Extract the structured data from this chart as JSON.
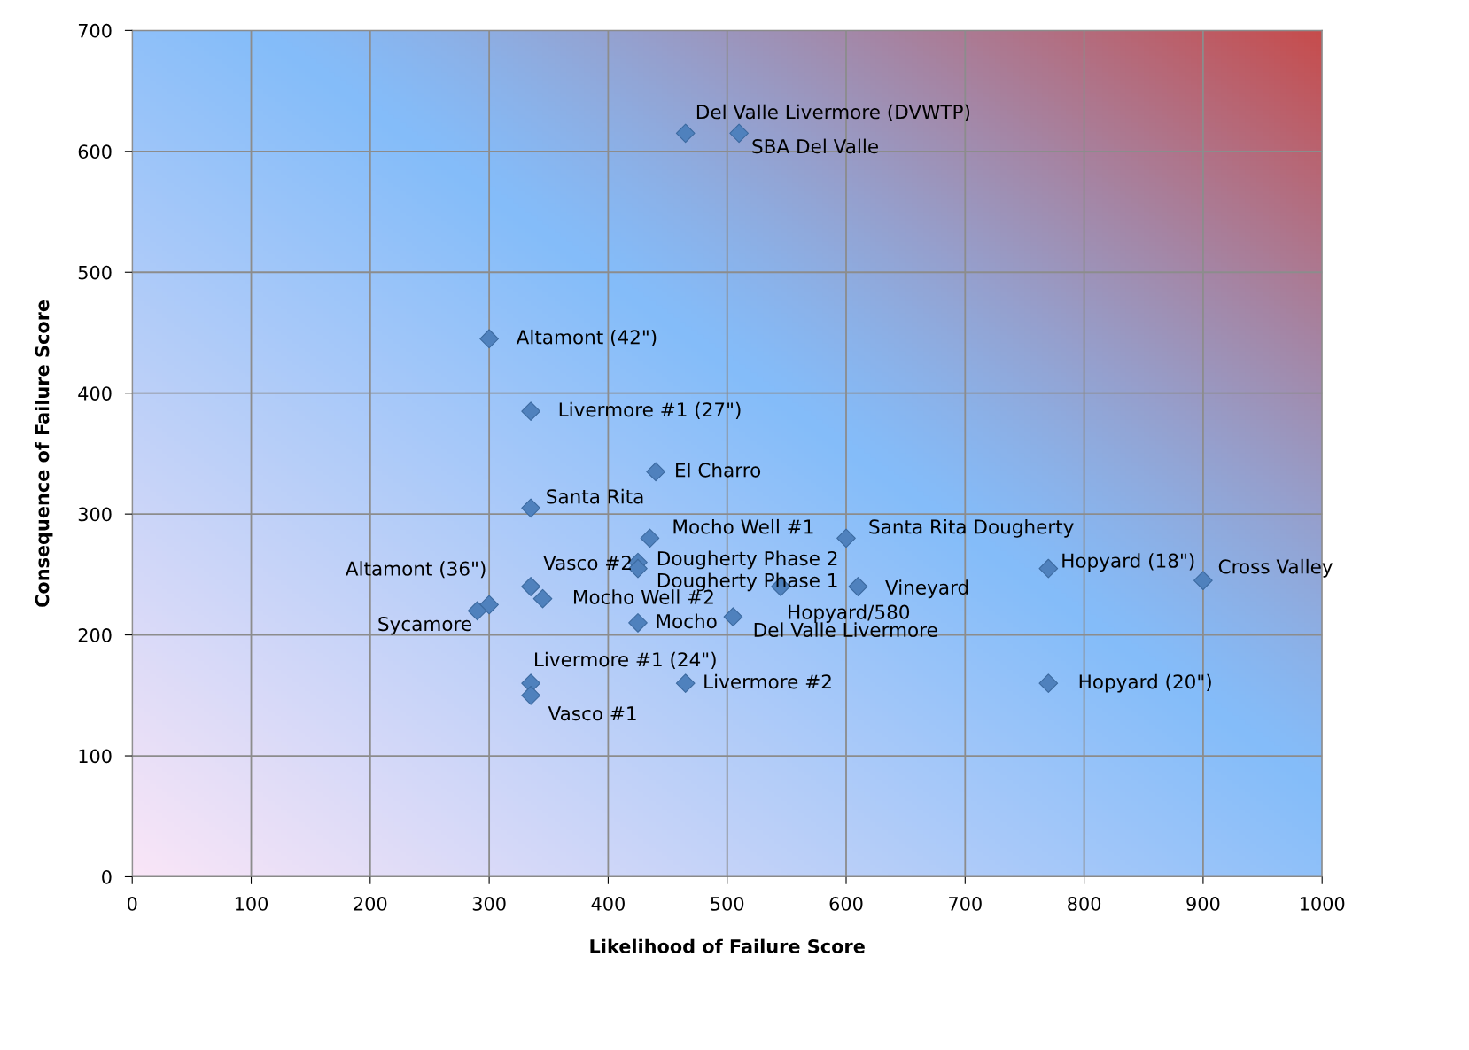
{
  "chart_data": {
    "type": "scatter",
    "xlabel": "Likelihood of Failure Score",
    "ylabel": "Consequence of Failure Score",
    "xlim": [
      0,
      1000
    ],
    "xticks": [
      0,
      100,
      200,
      300,
      400,
      500,
      600,
      700,
      800,
      900,
      1000
    ],
    "ylim": [
      0,
      700
    ],
    "yticks": [
      0,
      100,
      200,
      300,
      400,
      500,
      600,
      700
    ],
    "grid": true,
    "marker": "diamond",
    "series": [
      {
        "color": "#4f81bd",
        "x": [
          465,
          510,
          300,
          335,
          440,
          335,
          435,
          600,
          425,
          425,
          770,
          900,
          335,
          545,
          610,
          345,
          300,
          290,
          505,
          425,
          335,
          465,
          770,
          335
        ],
        "values": [
          615,
          615,
          445,
          385,
          335,
          305,
          280,
          280,
          260,
          255,
          255,
          245,
          240,
          240,
          240,
          230,
          225,
          220,
          215,
          210,
          160,
          160,
          160,
          150
        ]
      }
    ],
    "annotations": [
      {
        "text": "Del Valle Livermore (DVWTP)",
        "x": 465,
        "y": 615
      },
      {
        "text": "SBA Del Valle",
        "x": 510,
        "y": 615
      },
      {
        "text": "Altamont (42\")",
        "x": 300,
        "y": 445
      },
      {
        "text": "Livermore #1 (27\")",
        "x": 335,
        "y": 385
      },
      {
        "text": "El Charro",
        "x": 440,
        "y": 335
      },
      {
        "text": "Santa Rita",
        "x": 335,
        "y": 305
      },
      {
        "text": "Mocho Well #1",
        "x": 435,
        "y": 280
      },
      {
        "text": "Santa Rita Dougherty",
        "x": 600,
        "y": 280
      },
      {
        "text": "Dougherty Phase 2",
        "x": 425,
        "y": 260
      },
      {
        "text": "Dougherty Phase 1",
        "x": 425,
        "y": 255
      },
      {
        "text": "Hopyard (18\")",
        "x": 770,
        "y": 255
      },
      {
        "text": "Cross Valley",
        "x": 900,
        "y": 245
      },
      {
        "text": "Vasco #2",
        "x": 335,
        "y": 240
      },
      {
        "text": "Hopyard/580",
        "x": 545,
        "y": 240
      },
      {
        "text": "Vineyard",
        "x": 610,
        "y": 240
      },
      {
        "text": "Mocho Well #2",
        "x": 345,
        "y": 230
      },
      {
        "text": "Altamont (36\")",
        "x": 300,
        "y": 225
      },
      {
        "text": "Sycamore",
        "x": 290,
        "y": 220
      },
      {
        "text": "Del Valle Livermore",
        "x": 505,
        "y": 215
      },
      {
        "text": "Mocho",
        "x": 425,
        "y": 210
      },
      {
        "text": "Livermore #1 (24\")",
        "x": 335,
        "y": 160
      },
      {
        "text": "Livermore #2",
        "x": 465,
        "y": 160
      },
      {
        "text": "Hopyard (20\")",
        "x": 770,
        "y": 160
      },
      {
        "text": "Vasco #1",
        "x": 335,
        "y": 150
      }
    ]
  }
}
